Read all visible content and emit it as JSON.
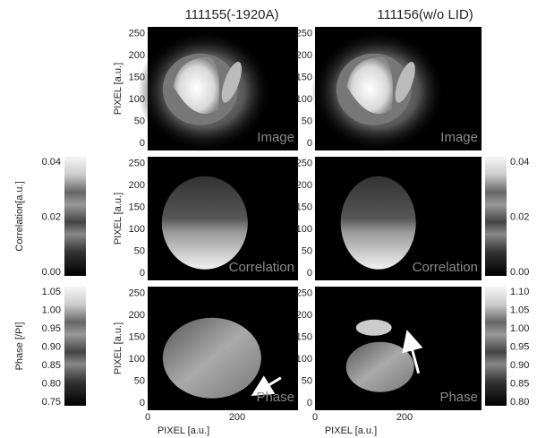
{
  "columns": [
    {
      "title": "111155(-1920A)"
    },
    {
      "title": "111156(w/o LID)"
    }
  ],
  "rows": [
    {
      "label": "Image"
    },
    {
      "label": "Correlation"
    },
    {
      "label": "Phase"
    }
  ],
  "y_axis": {
    "label": "PIXEL [a.u.]",
    "ticks": [
      "0",
      "50",
      "100",
      "150",
      "200",
      "250"
    ]
  },
  "x_axis": {
    "label": "PIXEL [a.u.]",
    "ticks": [
      "0",
      "200"
    ]
  },
  "colorbars": [
    {
      "label": "Correlation[a.u.]",
      "ticks": [
        "0.00",
        "0.02",
        "0.04"
      ]
    },
    {
      "label": "Phase [/PI]",
      "ticks": [
        "0.75",
        "0.80",
        "0.85",
        "0.90",
        "0.95",
        "1.00",
        "1.05"
      ]
    },
    {
      "ticks": [
        "0.00",
        "0.02",
        "0.04"
      ]
    },
    {
      "ticks": [
        "0.80",
        "0.85",
        "0.90",
        "0.95",
        "1.00",
        "1.05",
        "1.10"
      ]
    }
  ]
}
